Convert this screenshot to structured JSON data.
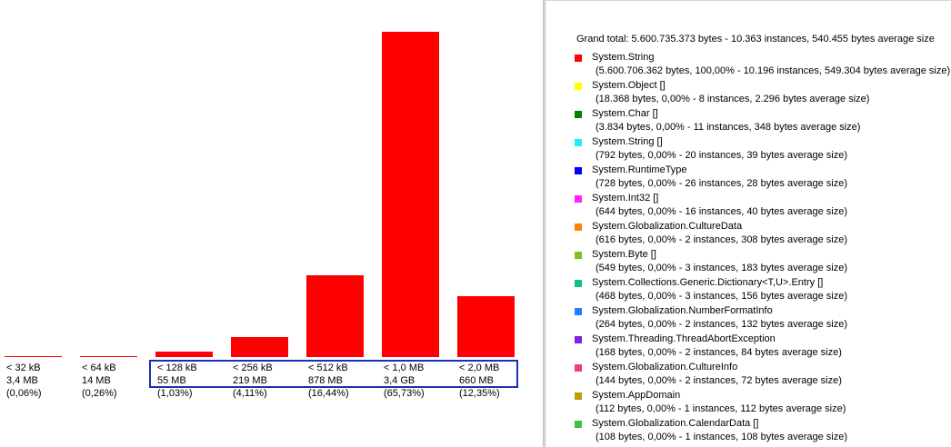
{
  "chart_data": {
    "type": "bar",
    "title": "",
    "categories": [
      "< 32 kB",
      "< 64 kB",
      "< 128 kB",
      "< 256 kB",
      "< 512 kB",
      "< 1,0 MB",
      "< 2,0 MB"
    ],
    "sizes": [
      "3,4 MB",
      "14 MB",
      "55 MB",
      "219 MB",
      "878 MB",
      "3,4 GB",
      "660 MB"
    ],
    "percents": [
      "(0,06%)",
      "(0,26%)",
      "(1,03%)",
      "(4,11%)",
      "(16,44%)",
      "(65,73%)",
      "(12,35%)"
    ],
    "values": [
      0.06,
      0.26,
      1.03,
      4.11,
      16.44,
      65.73,
      12.35
    ],
    "bar_color": "#ff0000",
    "selection_color": "#1c2fb0",
    "selected_range": [
      "< 128 kB",
      "< 2,0 MB"
    ]
  },
  "legend": {
    "grand_total": "Grand total: 5.600.735.373 bytes - 10.363 instances, 540.455 bytes average size",
    "items": [
      {
        "name": "System.String",
        "detail": "(5.600.706.362 bytes, 100,00% - 10.196 instances, 549.304 bytes average size)",
        "color": "#ff0000"
      },
      {
        "name": "System.Object []",
        "detail": "(18.368 bytes, 0,00% - 8 instances, 2.296 bytes average size)",
        "color": "#ffff00"
      },
      {
        "name": "System.Char []",
        "detail": "(3.834 bytes, 0,00% - 11 instances, 348 bytes average size)",
        "color": "#008000"
      },
      {
        "name": "System.String []",
        "detail": "(792 bytes, 0,00% - 20 instances, 39 bytes average size)",
        "color": "#22eeee"
      },
      {
        "name": "System.RuntimeType",
        "detail": "(728 bytes, 0,00% - 26 instances, 28 bytes average size)",
        "color": "#0000ff"
      },
      {
        "name": "System.Int32 []",
        "detail": "(644 bytes, 0,00% - 16 instances, 40 bytes average size)",
        "color": "#ff22ff"
      },
      {
        "name": "System.Globalization.CultureData",
        "detail": "(616 bytes, 0,00% - 2 instances, 308 bytes average size)",
        "color": "#ff8000"
      },
      {
        "name": "System.Byte []",
        "detail": "(549 bytes, 0,00% - 3 instances, 183 bytes average size)",
        "color": "#80c020"
      },
      {
        "name": "System.Collections.Generic.Dictionary<T,U>.Entry []",
        "detail": "(468 bytes, 0,00% - 3 instances, 156 bytes average size)",
        "color": "#10c080"
      },
      {
        "name": "System.Globalization.NumberFormatInfo",
        "detail": "(264 bytes, 0,00% - 2 instances, 132 bytes average size)",
        "color": "#1e80ff"
      },
      {
        "name": "System.Threading.ThreadAbortException",
        "detail": "(168 bytes, 0,00% - 2 instances, 84 bytes average size)",
        "color": "#8020e0"
      },
      {
        "name": "System.Globalization.CultureInfo",
        "detail": "(144 bytes, 0,00% - 2 instances, 72 bytes average size)",
        "color": "#f04070"
      },
      {
        "name": "System.AppDomain",
        "detail": "(112 bytes, 0,00% - 1 instances, 112 bytes average size)",
        "color": "#c0a000"
      },
      {
        "name": "System.Globalization.CalendarData []",
        "detail": "(108 bytes, 0,00% - 1 instances, 108 bytes average size)",
        "color": "#40c040"
      }
    ]
  }
}
